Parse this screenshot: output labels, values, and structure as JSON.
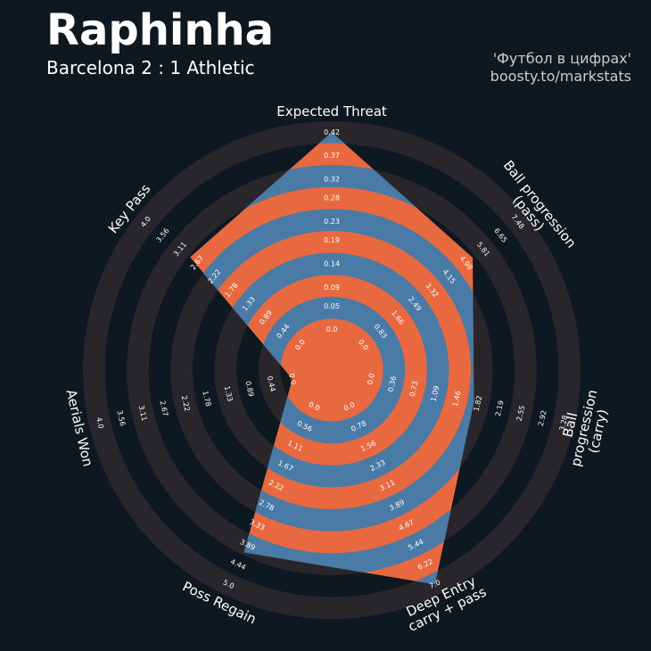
{
  "chart_data": {
    "type": "radar",
    "title": "Raphinha",
    "subtitle": "Barcelona 2 : 1 Athletic",
    "credits": [
      "'Футбол в цифрах'",
      "boosty.to/markstats"
    ],
    "params": [
      "Expected Threat",
      "Ball progression (pass)",
      "Ball progression (carry)",
      "Deep Entry\ncarry + pass",
      "Poss Regain",
      "Aerials Won",
      "Key Pass"
    ],
    "values": [
      0.42,
      5.3,
      1.75,
      7.0,
      4.1,
      0,
      2.85
    ],
    "colors": [
      "#4a7aa6",
      "#e8693f"
    ],
    "ring_color": "#28262b",
    "axes": [
      {
        "lim": [
          0,
          0.42
        ],
        "ticks": [
          {
            "value": 0,
            "label": "0.0"
          },
          0.05,
          0.09,
          0.14,
          0.19,
          0.23,
          0.28,
          0.32,
          0.37,
          0.42
        ]
      },
      {
        "lim": [
          0,
          7.48
        ],
        "ticks": [
          {
            "value": 0,
            "label": "0.0"
          },
          0.83,
          1.66,
          2.49,
          3.32,
          4.15,
          4.98,
          5.81,
          6.65,
          7.48
        ]
      },
      {
        "lim": [
          0,
          3.28
        ],
        "ticks": [
          {
            "value": 0,
            "label": "0.0"
          },
          0.36,
          0.73,
          1.09,
          1.46,
          1.82,
          2.19,
          2.55,
          2.92,
          3.28
        ]
      },
      {
        "lim": [
          0,
          7
        ],
        "ticks": [
          {
            "value": 0,
            "label": "0.0"
          },
          0.78,
          1.56,
          2.33,
          3.11,
          3.89,
          4.67,
          5.44,
          6.22,
          {
            "value": 7,
            "label": "7.0"
          }
        ]
      },
      {
        "lim": [
          0,
          5
        ],
        "ticks": [
          {
            "value": 0,
            "label": "0.0"
          },
          0.56,
          1.11,
          1.67,
          2.22,
          2.78,
          3.33,
          3.89,
          4.44,
          {
            "value": 5,
            "label": "5.0"
          }
        ]
      },
      {
        "lim": [
          0,
          4
        ],
        "ticks": [
          {
            "value": 0,
            "label": "0.0"
          },
          0.44,
          0.89,
          1.33,
          1.78,
          2.22,
          2.67,
          3.11,
          3.56,
          {
            "value": 4,
            "label": "4.0"
          }
        ]
      },
      {
        "lim": [
          0,
          4
        ],
        "ticks": [
          {
            "value": 0,
            "label": "0.0"
          },
          0.44,
          0.89,
          1.33,
          1.78,
          2.22,
          2.67,
          3.11,
          3.56,
          {
            "value": 4,
            "label": "4.0"
          }
        ]
      }
    ]
  }
}
